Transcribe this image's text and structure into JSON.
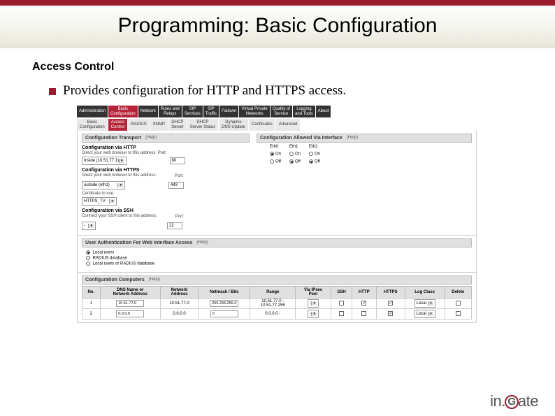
{
  "slide": {
    "title": "Programming: Basic Configuration",
    "subtitle": "Access Control",
    "bullet": "Provides configuration for HTTP and HTTPS access.",
    "header_bar_color": "#9b1c2f",
    "bullet_color": "#9b1c2f"
  },
  "main_tabs": [
    {
      "label": "Administration",
      "active": false
    },
    {
      "label": "Basic\nConfiguration",
      "active": true
    },
    {
      "label": "Network",
      "active": false
    },
    {
      "label": "Rules and\nRelays",
      "active": false
    },
    {
      "label": "SIP\nServices",
      "active": false
    },
    {
      "label": "SIP\nTraffic",
      "active": false
    },
    {
      "label": "Failover",
      "active": false
    },
    {
      "label": "Virtual Private\nNetworks",
      "active": false
    },
    {
      "label": "Quality of\nService",
      "active": false
    },
    {
      "label": "Logging\nand Tools",
      "active": false
    },
    {
      "label": "About",
      "active": false
    }
  ],
  "sub_tabs": [
    {
      "label": "Basic\nConfiguration",
      "active": false
    },
    {
      "label": "Access\nControl",
      "active": true
    },
    {
      "label": "RADIUS",
      "active": false
    },
    {
      "label": "SNMP",
      "active": false
    },
    {
      "label": "DHCP\nServer",
      "active": false
    },
    {
      "label": "DHCP\nServer Status",
      "active": false
    },
    {
      "label": "Dynamic\nDNS Update",
      "active": false
    },
    {
      "label": "Certificates",
      "active": false
    },
    {
      "label": "Advanced",
      "active": false
    }
  ],
  "transport": {
    "header": "Configuration Transport",
    "help": "(Help)",
    "http_title": "Configuration via HTTP",
    "http_desc": "Direct your web browser to this address: Port:",
    "http_ip": "Inside (10.51.77.1)",
    "http_port": "80",
    "https_title": "Configuration via HTTPS",
    "https_desc": "Direct your web browser to this address:",
    "https_port_label": "Port:",
    "https_sel": "outside (eth1)",
    "https_port": "443",
    "cert_label": "Certificate to use:",
    "cert_sel": "HTTPS_TV",
    "ssh_title": "Configuration via SSH",
    "ssh_desc": "Connect your SSH client to this address:",
    "ssh_port_label": "Port:",
    "ssh_sel": "-",
    "ssh_port": "22"
  },
  "interface": {
    "header": "Configuration Allowed Via Interface",
    "help": "(Help)",
    "cols": [
      "Eth0",
      "Eth1",
      "Eth2"
    ],
    "row_on": "On",
    "row_off": "Off"
  },
  "auth": {
    "header": "User Authentication For Web Interface Access",
    "help": "(Help)",
    "opt1": "Local users",
    "opt2": "RADIUS database",
    "opt3": "Local users or RADIUS database"
  },
  "computers": {
    "header": "Configuration Computers",
    "help": "(Help)",
    "columns": [
      "No.",
      "DNS Name or\nNetwork Address",
      "Network\nAddress",
      "Netmask / Bits",
      "Range",
      "Via IPsec\nPeer",
      "SSH",
      "HTTP",
      "HTTPS",
      "Log Class",
      "Delete"
    ],
    "rows": [
      {
        "no": "1",
        "dns": "10.51.77.0",
        "net": "10.51.77.0",
        "mask": "255.255.255.0",
        "range": "10.51.77.0 -\n10.51.77.255",
        "peer": "-",
        "ssh": false,
        "http": true,
        "https": true,
        "log": "Local"
      },
      {
        "no": "2",
        "dns": "0.0.0.0",
        "net": "0.0.0.0",
        "mask": "0",
        "range": "0.0.0.0 -",
        "peer": "-",
        "ssh": false,
        "http": false,
        "https": true,
        "log": "Local"
      }
    ]
  },
  "logo": {
    "prefix": "in.",
    "g": "G",
    "suffix": "ate"
  }
}
